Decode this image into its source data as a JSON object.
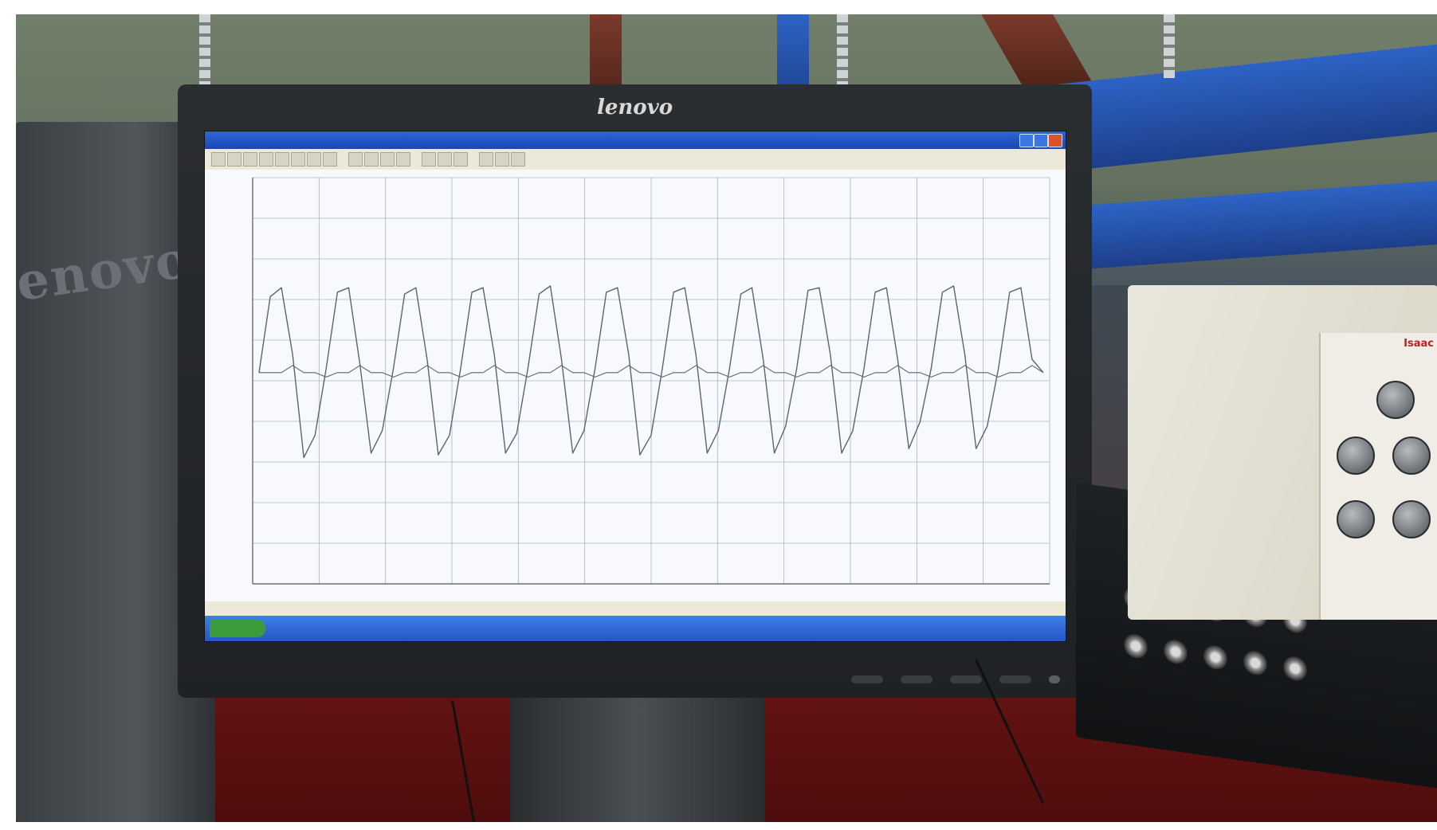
{
  "monitor": {
    "brand": "lenovo"
  },
  "equipment": {
    "amplifier_brand": "Isaac",
    "cabinet_logo": "enovo"
  },
  "software": {
    "window_title": "",
    "status_left": "",
    "status_mid": "",
    "status_right": ""
  },
  "chart_data": {
    "type": "line",
    "title": "",
    "xlabel": "",
    "ylabel": "",
    "grid": true,
    "series": [
      {
        "values": [
          0,
          0.85,
          0.95,
          0.2,
          -0.95,
          -0.7,
          0.05,
          0.9,
          0.95,
          0.1,
          -0.9,
          -0.65,
          0.05,
          0.88,
          0.95,
          0.15,
          -0.92,
          -0.7,
          0.05,
          0.9,
          0.95,
          0.2,
          -0.9,
          -0.68,
          0.05,
          0.88,
          0.97,
          0.15,
          -0.9,
          -0.65,
          0.05,
          0.9,
          0.95,
          0.2,
          -0.92,
          -0.7,
          0.05,
          0.9,
          0.95,
          0.2,
          -0.9,
          -0.65,
          0.05,
          0.88,
          0.95,
          0.15,
          -0.9,
          -0.6,
          0.05,
          0.92,
          0.95,
          0.2,
          -0.9,
          -0.65,
          0.05,
          0.9,
          0.95,
          0.15,
          -0.85,
          -0.55,
          0.05,
          0.9,
          0.97,
          0.2,
          -0.85,
          -0.6,
          0.05,
          0.9,
          0.95,
          0.15,
          0.0
        ]
      },
      {
        "values": [
          0,
          0,
          0,
          0.08,
          0,
          0,
          -0.05,
          0,
          0,
          0.08,
          0,
          0,
          -0.05,
          0,
          0,
          0.08,
          0,
          0,
          -0.05,
          0,
          0,
          0.08,
          0,
          0,
          -0.05,
          0,
          0,
          0.08,
          0,
          0,
          -0.05,
          0,
          0,
          0.08,
          0,
          0,
          -0.05,
          0,
          0,
          0.08,
          0,
          0,
          -0.05,
          0,
          0,
          0.08,
          0,
          0,
          -0.05,
          0,
          0,
          0.08,
          0,
          0,
          -0.05,
          0,
          0,
          0.08,
          0,
          0,
          -0.05,
          0,
          0,
          0.08,
          0,
          0,
          -0.05,
          0,
          0,
          0.08,
          0
        ]
      }
    ]
  },
  "colors": {
    "trace": "#5c6470",
    "grid": "#aab4c4",
    "taskbar": "#2f66d6"
  }
}
